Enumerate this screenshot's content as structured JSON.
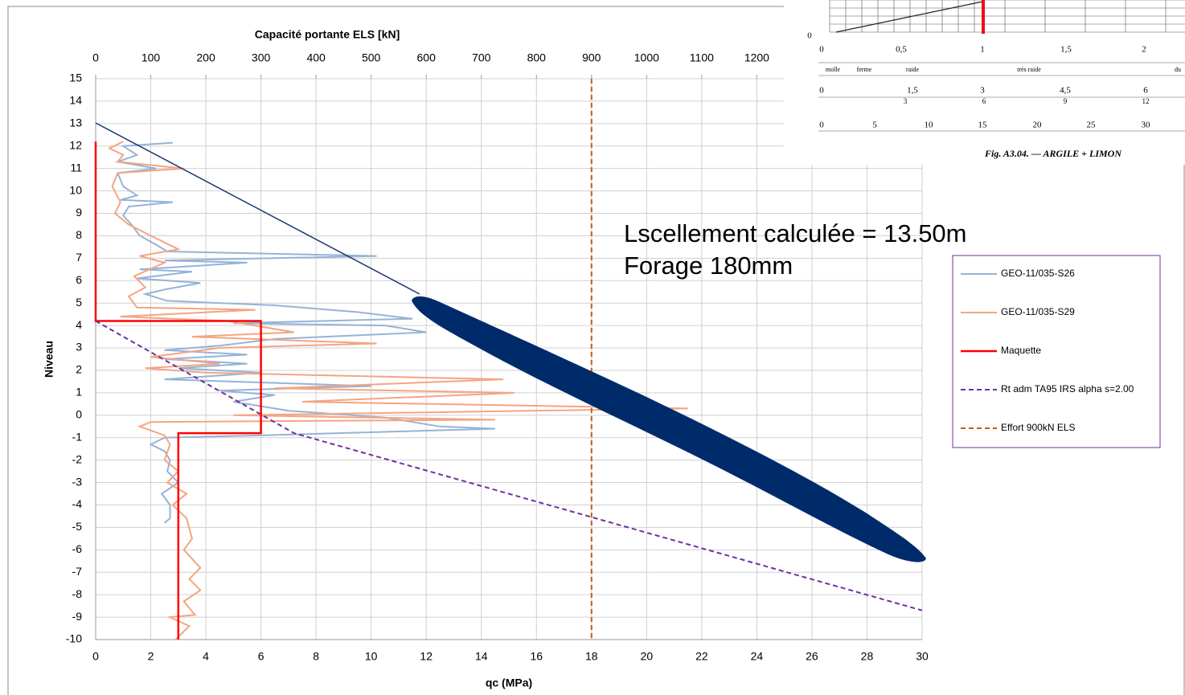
{
  "chart_data": {
    "type": "line",
    "x_label": "qc (MPa)",
    "x2_label": "Capacité portante ELS [kN]",
    "y_label": "Niveau",
    "xlim": [
      0,
      30
    ],
    "xticks": [
      0,
      2,
      4,
      6,
      8,
      10,
      12,
      14,
      16,
      18,
      20,
      22,
      24,
      26,
      28,
      30
    ],
    "x2lim": [
      0,
      1500
    ],
    "x2ticks": [
      0,
      100,
      200,
      300,
      400,
      500,
      600,
      700,
      800,
      900,
      1000,
      1100,
      1200
    ],
    "ylim": [
      -10,
      15
    ],
    "yticks": [
      -10,
      -9,
      -8,
      -7,
      -6,
      -5,
      -4,
      -3,
      -2,
      -1,
      0,
      1,
      2,
      3,
      4,
      5,
      6,
      7,
      8,
      9,
      10,
      11,
      12,
      13,
      14,
      15
    ],
    "grid": true,
    "legend": "right",
    "annotations": [
      "Lscellement calculée = 13.50m",
      "Forage 180mm"
    ],
    "series": [
      {
        "name": "GEO-11/035-S26",
        "color": "#95b3d7",
        "dash": false,
        "x": [
          2.8,
          1.0,
          1.5,
          0.8,
          2.2,
          0.8,
          1.0,
          1.5,
          0.9,
          2.8,
          1.2,
          1.0,
          1.3,
          1.6,
          2.2,
          2.6,
          10.2,
          2.5,
          5.5,
          1.6,
          3.5,
          1.5,
          3.8,
          2.5,
          1.8,
          2.6,
          6.5,
          9.5,
          11.5,
          5.0,
          10.5,
          12.0,
          6.5,
          4.5,
          2.5,
          5.5,
          2.5,
          5.5,
          3.0,
          6.0,
          2.5,
          10.0,
          4.5,
          6.5,
          5.0,
          7.0,
          10.5,
          12.5,
          14.5,
          6.0,
          2.5,
          2.0,
          2.5,
          2.7,
          2.6,
          3.0,
          2.4,
          2.7,
          2.7,
          2.5
        ],
        "values": [
          12.15,
          12.0,
          11.6,
          11.3,
          11.0,
          10.8,
          10.2,
          9.8,
          9.6,
          9.5,
          9.3,
          8.9,
          8.5,
          8.0,
          7.6,
          7.3,
          7.1,
          6.9,
          6.8,
          6.5,
          6.4,
          6.1,
          5.9,
          5.6,
          5.4,
          5.1,
          4.9,
          4.6,
          4.3,
          4.1,
          4.0,
          3.7,
          3.4,
          3.1,
          2.9,
          2.7,
          2.5,
          2.3,
          2.1,
          1.9,
          1.6,
          1.3,
          1.1,
          0.9,
          0.6,
          0.2,
          -0.1,
          -0.5,
          -0.6,
          -0.9,
          -1.0,
          -1.3,
          -1.6,
          -2.0,
          -2.5,
          -3.0,
          -3.5,
          -4.0,
          -4.6,
          -4.8
        ]
      },
      {
        "name": "GEO-11/035-S29",
        "color": "#f4a582",
        "dash": false,
        "x": [
          1.0,
          0.5,
          1.0,
          0.8,
          3.2,
          0.8,
          0.6,
          0.9,
          0.7,
          1.2,
          2.0,
          3.0,
          1.6,
          2.5,
          1.4,
          1.8,
          1.2,
          1.5,
          5.8,
          0.9,
          4.8,
          7.2,
          3.5,
          10.2,
          4.5,
          2.0,
          4.5,
          1.8,
          4.0,
          14.8,
          6.5,
          15.2,
          7.5,
          21.5,
          5.0,
          14.5,
          2.0,
          1.6,
          2.5,
          2.7,
          2.5,
          3.0,
          2.6,
          3.3,
          2.8,
          3.3,
          3.5,
          3.2,
          3.8,
          3.4,
          3.8,
          3.2,
          3.6,
          2.7,
          3.4,
          2.9
        ],
        "values": [
          12.2,
          11.9,
          11.6,
          11.3,
          11.0,
          10.8,
          10.2,
          9.5,
          9.0,
          8.5,
          8.0,
          7.4,
          7.1,
          6.8,
          6.2,
          5.7,
          5.3,
          4.8,
          4.7,
          4.4,
          4.2,
          3.7,
          3.5,
          3.2,
          3.0,
          2.6,
          2.3,
          2.1,
          1.9,
          1.6,
          1.2,
          1.0,
          0.6,
          0.3,
          0.0,
          -0.2,
          -0.3,
          -0.5,
          -0.9,
          -1.3,
          -2.0,
          -2.5,
          -3.0,
          -3.5,
          -4.0,
          -4.6,
          -5.5,
          -6.0,
          -6.8,
          -7.3,
          -7.8,
          -8.3,
          -8.9,
          -9.0,
          -9.4,
          -10.0
        ]
      },
      {
        "name": "Maquette",
        "color": "#ff0000",
        "dash": false,
        "width": 2.5,
        "x": [
          0,
          0,
          6,
          6,
          3,
          3
        ],
        "values": [
          12.2,
          4.2,
          4.2,
          -0.8,
          -0.8,
          -10
        ]
      },
      {
        "name": "Rt adm TA95 IRS alpha s=2.00",
        "color": "#7030a0",
        "dash": true,
        "x": [
          0,
          7.2,
          30
        ],
        "values": [
          4.2,
          -0.8,
          -8.7
        ]
      },
      {
        "name": "Effort 900kN ELS",
        "color": "#c55a11",
        "dash": true,
        "axis": "x2",
        "x": [
          900,
          900
        ],
        "values": [
          15,
          -10
        ]
      }
    ]
  },
  "inset": {
    "caption": "Fig. A3.04. — ARGILE + LIMON",
    "y_label": "0",
    "top_ticks": [
      "0",
      "0,5",
      "1",
      "1,5",
      "2"
    ],
    "bands": [
      "molle",
      "ferme",
      "raide",
      "très raide",
      "du"
    ],
    "mid_ticks": [
      "0",
      "1,5",
      "3",
      "4,5",
      "6"
    ],
    "red_ticks": [
      "3",
      "6",
      "9",
      "12"
    ],
    "bottom_ticks": [
      "0",
      "5",
      "10",
      "15",
      "20",
      "25",
      "30"
    ]
  }
}
